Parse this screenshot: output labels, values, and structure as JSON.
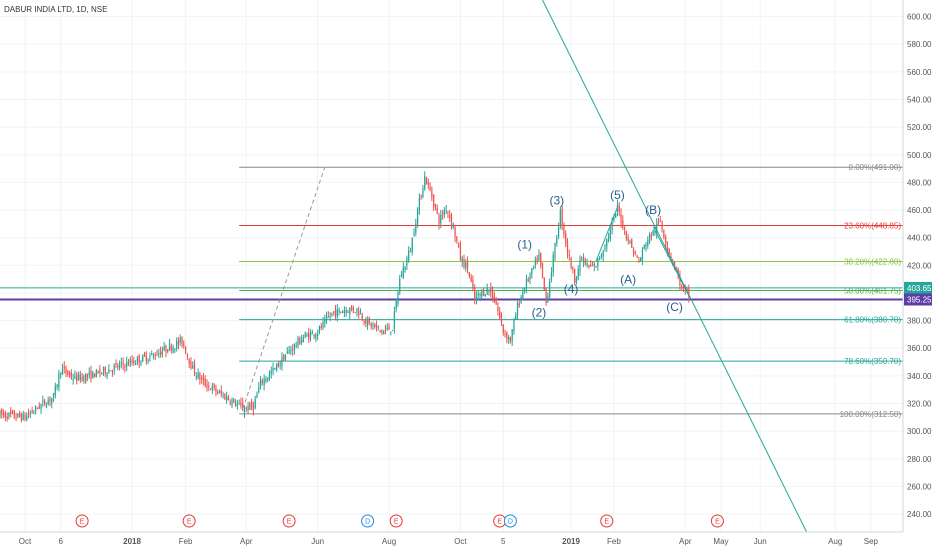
{
  "chart_data": {
    "type": "candlestick",
    "title": "DABUR INDIA LTD, 1D, NSE",
    "ylim": [
      227,
      612
    ],
    "y_ticks": [
      600,
      580,
      560,
      540,
      520,
      500,
      480,
      460,
      440,
      420,
      400,
      380,
      360,
      340,
      320,
      300,
      280,
      260,
      240
    ],
    "x_ticks": [
      {
        "label": "Oct",
        "t": 0
      },
      {
        "label": "6",
        "t": 10
      },
      {
        "label": "2018",
        "t": 30
      },
      {
        "label": "Feb",
        "t": 45
      },
      {
        "label": "Apr",
        "t": 62
      },
      {
        "label": "Jun",
        "t": 82
      },
      {
        "label": "Aug",
        "t": 102
      },
      {
        "label": "Oct",
        "t": 122
      },
      {
        "label": "5",
        "t": 134
      },
      {
        "label": "2019",
        "t": 153
      },
      {
        "label": "Feb",
        "t": 165
      },
      {
        "label": "Apr",
        "t": 185
      },
      {
        "label": "May",
        "t": 195
      },
      {
        "label": "Jun",
        "t": 206
      },
      {
        "label": "Aug",
        "t": 227
      },
      {
        "label": "Sep",
        "t": 237
      }
    ],
    "x_range": [
      -7,
      246
    ],
    "price_path": [
      [
        -7,
        312
      ],
      [
        0,
        310
      ],
      [
        4,
        318
      ],
      [
        8,
        325
      ],
      [
        10,
        345
      ],
      [
        14,
        338
      ],
      [
        18,
        340
      ],
      [
        24,
        345
      ],
      [
        30,
        350
      ],
      [
        36,
        355
      ],
      [
        40,
        360
      ],
      [
        44,
        365
      ],
      [
        47,
        345
      ],
      [
        50,
        335
      ],
      [
        54,
        328
      ],
      [
        58,
        322
      ],
      [
        61,
        316
      ],
      [
        64,
        318
      ],
      [
        66,
        335
      ],
      [
        70,
        345
      ],
      [
        74,
        358
      ],
      [
        78,
        368
      ],
      [
        82,
        372
      ],
      [
        86,
        385
      ],
      [
        90,
        388
      ],
      [
        93,
        388
      ],
      [
        96,
        378
      ],
      [
        100,
        372
      ],
      [
        103,
        375
      ],
      [
        105,
        410
      ],
      [
        108,
        432
      ],
      [
        110,
        460
      ],
      [
        112,
        484
      ],
      [
        114,
        470
      ],
      [
        116,
        452
      ],
      [
        118,
        462
      ],
      [
        120,
        448
      ],
      [
        122,
        425
      ],
      [
        124,
        418
      ],
      [
        126,
        395
      ],
      [
        128,
        400
      ],
      [
        130,
        403
      ],
      [
        132,
        392
      ],
      [
        134,
        372
      ],
      [
        136,
        366
      ],
      [
        138,
        390
      ],
      [
        140,
        405
      ],
      [
        142,
        415
      ],
      [
        144,
        427
      ],
      [
        146,
        393
      ],
      [
        148,
        425
      ],
      [
        150,
        458
      ],
      [
        152,
        430
      ],
      [
        154,
        410
      ],
      [
        156,
        425
      ],
      [
        158,
        418
      ],
      [
        160,
        420
      ],
      [
        162,
        432
      ],
      [
        164,
        445
      ],
      [
        166,
        462
      ],
      [
        168,
        445
      ],
      [
        170,
        433
      ],
      [
        172,
        422
      ],
      [
        174,
        437
      ],
      [
        176,
        444
      ],
      [
        178,
        452
      ],
      [
        180,
        432
      ],
      [
        182,
        420
      ],
      [
        184,
        403
      ],
      [
        186,
        398
      ]
    ],
    "fibonacci": [
      {
        "label": "0.00%(491.00)",
        "price": 491.0,
        "color": "#888888"
      },
      {
        "label": "23.60%(448.85)",
        "price": 448.85,
        "color": "#e53935"
      },
      {
        "label": "38.20%(422.80)",
        "price": 422.8,
        "color": "#8bc34a"
      },
      {
        "label": "50.00%(401.75)",
        "price": 401.75,
        "color": "#4caf50"
      },
      {
        "label": "61.80%(380.70)",
        "price": 380.7,
        "color": "#26a69a"
      },
      {
        "label": "78.60%(350.70)",
        "price": 350.7,
        "color": "#26a69a"
      },
      {
        "label": "100.00%(312.50)",
        "price": 312.5,
        "color": "#888888"
      }
    ],
    "fib_start_t": 60,
    "price_labels": [
      {
        "label": "403.65",
        "price": 403.65,
        "color": "#26a69a"
      },
      {
        "label": "395.25",
        "price": 395.25,
        "color": "#5c3ea6"
      }
    ],
    "horizontal_lines": [
      {
        "price": 403.65,
        "color": "#26a69a"
      },
      {
        "price": 395.25,
        "color": "#5c3ea6"
      }
    ],
    "wave_labels": [
      {
        "label": "(1)",
        "t": 140,
        "price": 432
      },
      {
        "label": "(2)",
        "t": 144,
        "price": 383
      },
      {
        "label": "(3)",
        "t": 149,
        "price": 464
      },
      {
        "label": "(4)",
        "t": 153,
        "price": 400
      },
      {
        "label": "(5)",
        "t": 166,
        "price": 468
      },
      {
        "label": "(A)",
        "t": 169,
        "price": 407
      },
      {
        "label": "(B)",
        "t": 176,
        "price": 457
      },
      {
        "label": "(C)",
        "t": 182,
        "price": 387
      }
    ],
    "trend_lines": [
      {
        "from": [
          145,
          612
        ],
        "to": [
          219,
          227
        ],
        "color": "#26a69a",
        "dash": false
      },
      {
        "from": [
          61,
          316
        ],
        "to": [
          84,
          491
        ],
        "color": "#999999",
        "dash": true
      },
      {
        "from": [
          160,
          423
        ],
        "to": [
          166,
          462
        ],
        "color": "#26a69a",
        "dash": false
      },
      {
        "from": [
          176,
          448
        ],
        "to": [
          186,
          398
        ],
        "color": "#26a69a",
        "dash": false
      }
    ],
    "event_badges": [
      {
        "label": "E",
        "t": 16,
        "color": "#e53935"
      },
      {
        "label": "E",
        "t": 46,
        "color": "#e53935"
      },
      {
        "label": "E",
        "t": 74,
        "color": "#e53935"
      },
      {
        "label": "D",
        "t": 96,
        "color": "#1e88e5"
      },
      {
        "label": "E",
        "t": 104,
        "color": "#e53935"
      },
      {
        "label": "E",
        "t": 133,
        "color": "#e53935"
      },
      {
        "label": "D",
        "t": 136,
        "color": "#1e88e5"
      },
      {
        "label": "E",
        "t": 163,
        "color": "#e53935"
      },
      {
        "label": "E",
        "t": 194,
        "color": "#e53935"
      }
    ],
    "up_color": "#26a69a",
    "down_color": "#ef5350"
  }
}
